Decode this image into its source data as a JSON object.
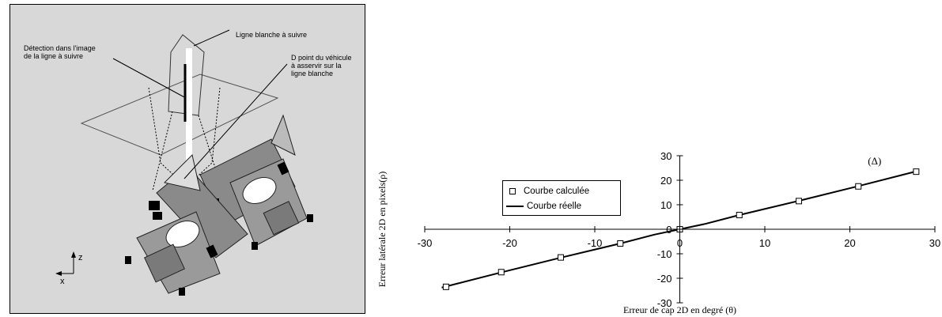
{
  "diagram": {
    "label_detection": "Détection  dans  l'image\nde la ligne à suivre",
    "label_line": "Ligne blanche à suivre",
    "label_point": "D point du véhicule\nà asservir sur la\nligne blanche",
    "axis_z": "z",
    "axis_x": "x"
  },
  "chart_data": {
    "type": "line",
    "xlabel": "Erreur de cap 2D en degré (θ)",
    "ylabel": "Erreur latérale 2D en pixels(ρ)",
    "xlim": [
      -30,
      30
    ],
    "ylim": [
      -30,
      30
    ],
    "x_ticks": [
      "-30",
      "-20",
      "-10",
      "0",
      "10",
      "20",
      "30"
    ],
    "y_ticks": [
      "30",
      "20",
      "10",
      "0",
      "-10",
      "-20",
      "-30"
    ],
    "annotation": "(Δ)",
    "series": [
      {
        "name": "Courbe calculée",
        "marker": "square",
        "x": [
          -27.5,
          -21,
          -14,
          -7,
          0,
          7,
          14,
          21,
          27.8
        ],
        "y": [
          -23.5,
          -17.5,
          -11.5,
          -5.8,
          0,
          5.8,
          11.5,
          17.5,
          23.5
        ]
      },
      {
        "name": "Courbe réelle",
        "marker": "line",
        "x": [
          -28,
          -21,
          -14,
          -7,
          -3,
          0,
          3,
          7,
          14,
          21,
          28
        ],
        "y": [
          -23.8,
          -17.6,
          -11.6,
          -5.8,
          -2.2,
          0,
          2.2,
          5.8,
          11.6,
          17.6,
          23.8
        ]
      }
    ],
    "legend": [
      "Courbe calculée",
      "Courbe réelle"
    ],
    "legend_position": "top-left"
  }
}
